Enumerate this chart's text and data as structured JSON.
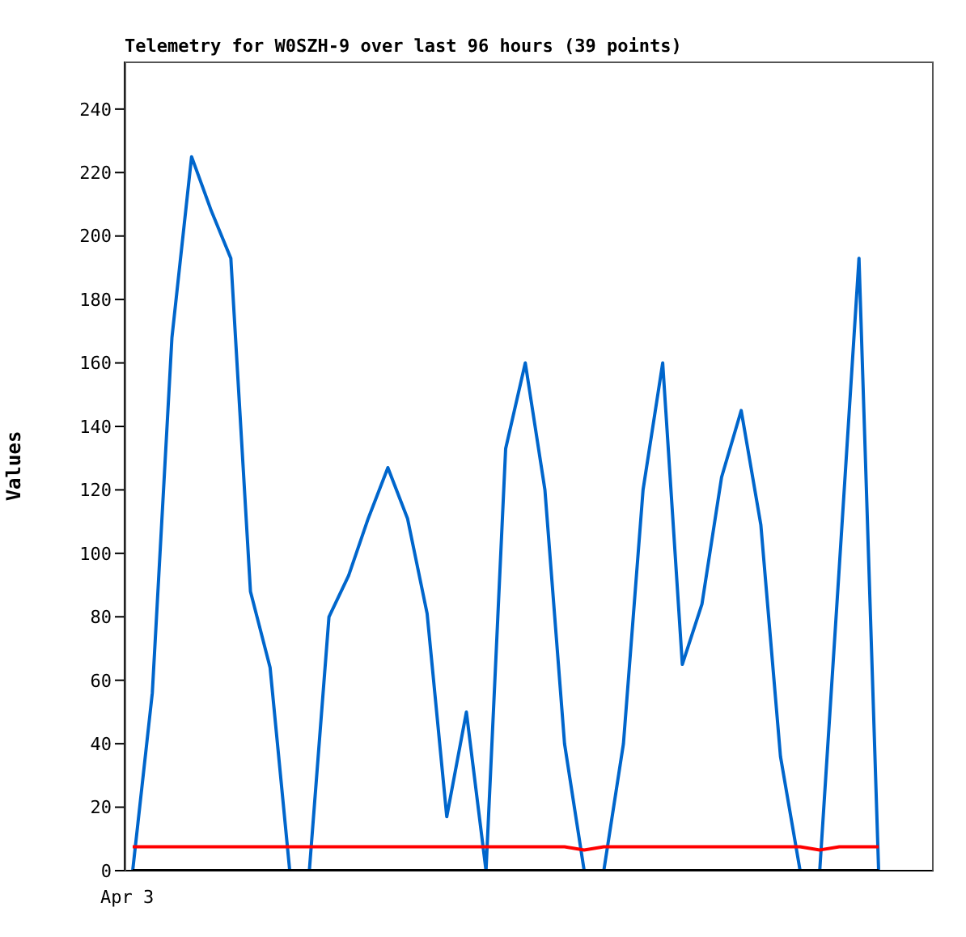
{
  "chart_data": {
    "type": "line",
    "title": "Telemetry for W0SZH-9 over last 96 hours (39 points)",
    "ylabel": "Values",
    "annotations": [
      "Apr 3"
    ],
    "ylim": [
      0,
      255
    ],
    "yticks": [
      0,
      20,
      40,
      60,
      80,
      100,
      120,
      140,
      160,
      180,
      200,
      220,
      240
    ],
    "grid": false,
    "marker": "none",
    "line_style": "solid",
    "categories": [
      null,
      null,
      null,
      null,
      null,
      null,
      null,
      null,
      null,
      null,
      null,
      null,
      null,
      null,
      null,
      null,
      null,
      null,
      null,
      null,
      null,
      null,
      null,
      null,
      null,
      null,
      null,
      null,
      null,
      null,
      null,
      null,
      null,
      null,
      null,
      null,
      null,
      null,
      null
    ],
    "series": [
      {
        "color": "#0066cc",
        "values": [
          0,
          56,
          168,
          225,
          208,
          193,
          88,
          64,
          0,
          0,
          80,
          93,
          111,
          127,
          111,
          81,
          17,
          50,
          0,
          133,
          160,
          120,
          40,
          0,
          0,
          40,
          120,
          160,
          65,
          84,
          124,
          145,
          109,
          36,
          0,
          0,
          96,
          193,
          0
        ]
      },
      {
        "color": "#ff0000",
        "values": [
          7.5,
          7.5,
          7.5,
          7.5,
          7.5,
          7.5,
          7.5,
          7.5,
          7.5,
          7.5,
          7.5,
          7.5,
          7.5,
          7.5,
          7.5,
          7.5,
          7.5,
          7.5,
          7.5,
          7.5,
          7.5,
          7.5,
          7.5,
          6.5,
          7.5,
          7.5,
          7.5,
          7.5,
          7.5,
          7.5,
          7.5,
          7.5,
          7.5,
          7.5,
          7.5,
          6.5,
          7.5,
          7.5,
          7.5
        ]
      },
      {
        "color": "#000000",
        "values": [
          0,
          0,
          0,
          0,
          0,
          0,
          0,
          0,
          0,
          0,
          0,
          0,
          0,
          0,
          0,
          0,
          0,
          0,
          0,
          0,
          0,
          0,
          0,
          0,
          0,
          0,
          0,
          0,
          0,
          0,
          0,
          0,
          0,
          0,
          0,
          0,
          0,
          0,
          0
        ]
      }
    ]
  }
}
